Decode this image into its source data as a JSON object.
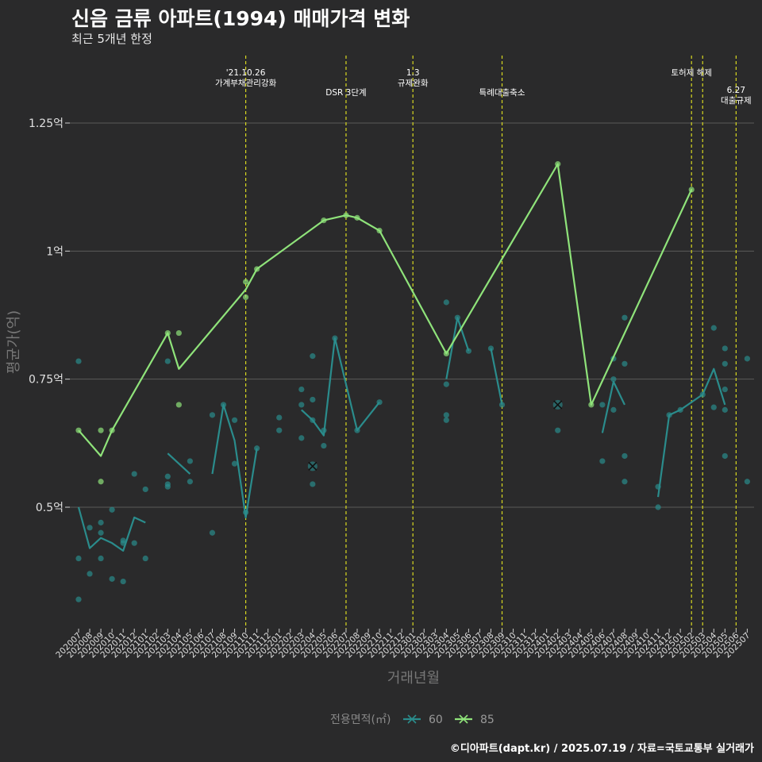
{
  "title": "신음 금류 아파트(1994) 매매가격 변화",
  "subtitle": "최근 5개년 한정",
  "caption": "©디아파트(dapt.kr) / 2025.07.19 / 자료=국토교통부 실거래가",
  "colors": {
    "background": "#2a2a2b",
    "grid": "#5a5a5a",
    "event_line": "#d8d820",
    "series_60": "#2a8c8c",
    "series_85": "#8fe37a"
  },
  "chart_data": {
    "type": "line",
    "xlabel": "거래년월",
    "ylabel": "평균가(억)",
    "y_range": [
      0.25,
      1.35
    ],
    "y_ticks": [
      {
        "value": 0.5,
        "label": "0.5억"
      },
      {
        "value": 0.75,
        "label": "0.75억"
      },
      {
        "value": 1.0,
        "label": "1억"
      },
      {
        "value": 1.25,
        "label": "1.25억"
      }
    ],
    "x_categories": [
      "202007",
      "202008",
      "202009",
      "202010",
      "202011",
      "202012",
      "202101",
      "202102",
      "202103",
      "202104",
      "202105",
      "202106",
      "202107",
      "202108",
      "202109",
      "202110",
      "202111",
      "202112",
      "202201",
      "202202",
      "202203",
      "202204",
      "202205",
      "202206",
      "202207",
      "202208",
      "202209",
      "202210",
      "202211",
      "202212",
      "202301",
      "202302",
      "202303",
      "202304",
      "202305",
      "202306",
      "202307",
      "202308",
      "202309",
      "202310",
      "202311",
      "202312",
      "202401",
      "202402",
      "202403",
      "202404",
      "202405",
      "202406",
      "202407",
      "202408",
      "202409",
      "202410",
      "202411",
      "202412",
      "202501",
      "202502",
      "202503",
      "202504",
      "202505",
      "202506",
      "202507"
    ],
    "legend": {
      "title": "전용면적(㎡)",
      "position": "bottom"
    },
    "grid": true,
    "events": [
      {
        "x": 15,
        "label": "'21.10.26\n가계부채관리강화",
        "row": 0
      },
      {
        "x": 24,
        "label": "DSR 3단계",
        "row": 1
      },
      {
        "x": 30,
        "label": "1.3\n규제완화",
        "row": 0
      },
      {
        "x": 38,
        "label": "특례대출축소",
        "row": 1
      },
      {
        "x": 55,
        "label": "토허제 해제",
        "row": 0
      },
      {
        "x": 56,
        "label": "",
        "row": 0
      },
      {
        "x": 59,
        "label": "6.27\n대출규제",
        "row": 2
      }
    ],
    "series": [
      {
        "name": "60",
        "color_key": "series_60",
        "line": [
          [
            0,
            0.5
          ],
          [
            1,
            0.42
          ],
          [
            2,
            0.44
          ],
          [
            3,
            0.43
          ],
          [
            4,
            0.415
          ],
          [
            5,
            0.48
          ],
          [
            6,
            0.47
          ],
          [
            null,
            null
          ],
          [
            8,
            0.605
          ],
          [
            10,
            0.565
          ],
          [
            null,
            null
          ],
          [
            12,
            0.565
          ],
          [
            13,
            0.7
          ],
          [
            14,
            0.63
          ],
          [
            15,
            0.48
          ],
          [
            16,
            0.615
          ],
          [
            null,
            null
          ],
          [
            20,
            0.69
          ],
          [
            21,
            0.67
          ],
          [
            22,
            0.64
          ],
          [
            23,
            0.83
          ],
          [
            25,
            0.65
          ],
          [
            27,
            0.705
          ],
          [
            null,
            null
          ],
          [
            33,
            0.75
          ],
          [
            34,
            0.87
          ],
          [
            35,
            0.805
          ],
          [
            null,
            null
          ],
          [
            37,
            0.81
          ],
          [
            38,
            0.7
          ],
          [
            null,
            null
          ],
          [
            43,
            0.7
          ],
          [
            null,
            null
          ],
          [
            47,
            0.645
          ],
          [
            48,
            0.745
          ],
          [
            49,
            0.7
          ],
          [
            null,
            null
          ],
          [
            52,
            0.52
          ],
          [
            53,
            0.68
          ],
          [
            54,
            0.69
          ],
          [
            56,
            0.72
          ],
          [
            57,
            0.77
          ],
          [
            58,
            0.7
          ]
        ],
        "points": [
          [
            0,
            0.785
          ],
          [
            0,
            0.4
          ],
          [
            0,
            0.32
          ],
          [
            1,
            0.46
          ],
          [
            1,
            0.37
          ],
          [
            2,
            0.47
          ],
          [
            2,
            0.45
          ],
          [
            2,
            0.4
          ],
          [
            3,
            0.495
          ],
          [
            3,
            0.36
          ],
          [
            4,
            0.435
          ],
          [
            4,
            0.43
          ],
          [
            4,
            0.355
          ],
          [
            5,
            0.565
          ],
          [
            5,
            0.43
          ],
          [
            6,
            0.535
          ],
          [
            6,
            0.4
          ],
          [
            8,
            0.785
          ],
          [
            8,
            0.56
          ],
          [
            8,
            0.545
          ],
          [
            8,
            0.54
          ],
          [
            10,
            0.59
          ],
          [
            10,
            0.55
          ],
          [
            12,
            0.68
          ],
          [
            12,
            0.45
          ],
          [
            13,
            0.7
          ],
          [
            14,
            0.67
          ],
          [
            14,
            0.585
          ],
          [
            15,
            0.49
          ],
          [
            16,
            0.615
          ],
          [
            18,
            0.675
          ],
          [
            18,
            0.65
          ],
          [
            20,
            0.73
          ],
          [
            20,
            0.7
          ],
          [
            20,
            0.635
          ],
          [
            21,
            0.795
          ],
          [
            21,
            0.71
          ],
          [
            21,
            0.67
          ],
          [
            21,
            0.545
          ],
          [
            22,
            0.65
          ],
          [
            22,
            0.62
          ],
          [
            23,
            0.83
          ],
          [
            25,
            0.65
          ],
          [
            27,
            0.705
          ],
          [
            33,
            0.9
          ],
          [
            33,
            0.74
          ],
          [
            33,
            0.68
          ],
          [
            33,
            0.67
          ],
          [
            34,
            0.87
          ],
          [
            35,
            0.805
          ],
          [
            37,
            0.81
          ],
          [
            38,
            0.7
          ],
          [
            43,
            0.65
          ],
          [
            47,
            0.7
          ],
          [
            47,
            0.59
          ],
          [
            48,
            0.79
          ],
          [
            48,
            0.75
          ],
          [
            48,
            0.69
          ],
          [
            49,
            0.87
          ],
          [
            49,
            0.78
          ],
          [
            49,
            0.6
          ],
          [
            49,
            0.55
          ],
          [
            52,
            0.54
          ],
          [
            52,
            0.5
          ],
          [
            53,
            0.68
          ],
          [
            54,
            0.69
          ],
          [
            56,
            0.72
          ],
          [
            57,
            0.85
          ],
          [
            57,
            0.695
          ],
          [
            58,
            0.81
          ],
          [
            58,
            0.78
          ],
          [
            58,
            0.73
          ],
          [
            58,
            0.69
          ],
          [
            58,
            0.6
          ],
          [
            60,
            0.79
          ],
          [
            60,
            0.55
          ]
        ],
        "x_marks": [
          [
            21,
            0.58
          ],
          [
            43,
            0.7
          ]
        ]
      },
      {
        "name": "85",
        "color_key": "series_85",
        "line": [
          [
            0,
            0.65
          ],
          [
            2,
            0.6
          ],
          [
            3,
            0.65
          ],
          [
            8,
            0.84
          ],
          [
            9,
            0.77
          ],
          [
            15,
            0.925
          ],
          [
            16,
            0.965
          ],
          [
            22,
            1.06
          ],
          [
            24,
            1.07
          ],
          [
            25,
            1.065
          ],
          [
            27,
            1.04
          ],
          [
            33,
            0.8
          ],
          [
            43,
            1.17
          ],
          [
            46,
            0.7
          ],
          [
            55,
            1.12
          ]
        ],
        "points": [
          [
            0,
            0.65
          ],
          [
            2,
            0.65
          ],
          [
            2,
            0.55
          ],
          [
            3,
            0.65
          ],
          [
            8,
            0.84
          ],
          [
            9,
            0.84
          ],
          [
            9,
            0.7
          ],
          [
            15,
            0.94
          ],
          [
            15,
            0.91
          ],
          [
            16,
            0.965
          ],
          [
            22,
            1.06
          ],
          [
            24,
            1.07
          ],
          [
            25,
            1.065
          ],
          [
            27,
            1.04
          ],
          [
            33,
            0.8
          ],
          [
            43,
            1.17
          ],
          [
            46,
            0.7
          ],
          [
            55,
            1.12
          ]
        ],
        "x_marks": []
      }
    ]
  }
}
